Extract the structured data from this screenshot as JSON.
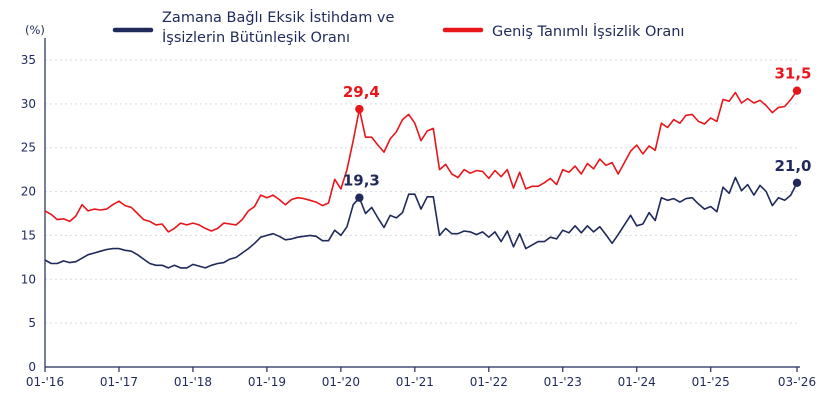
{
  "chart_data": {
    "type": "line",
    "unit_label": "(%)",
    "ylim": [
      0,
      35
    ],
    "y_ticks": [
      "0",
      "5",
      "10",
      "15",
      "20",
      "25",
      "30",
      "35"
    ],
    "y_tick_values": [
      0,
      5,
      10,
      15,
      20,
      25,
      30,
      35
    ],
    "x_range": [
      "2016-01",
      "2026-03"
    ],
    "x_tick_labels": [
      "01-'16",
      "01-'17",
      "01-'18",
      "01-'19",
      "01-'20",
      "01-'21",
      "01-'22",
      "01-'23",
      "01-'24",
      "01-'25",
      "03-'26"
    ],
    "x_tick_values": [
      "2016-01",
      "2017-01",
      "2018-01",
      "2019-01",
      "2020-01",
      "2021-01",
      "2022-01",
      "2023-01",
      "2024-01",
      "2025-01",
      "2026-03"
    ],
    "grid": "horizontal",
    "legend_position": "top",
    "series": [
      {
        "name": "Zamana Bağlı Eksik İstihdam ve İşsizlerin Bütünleşik Oranı",
        "legend_lines": [
          "Zamana Bağlı Eksik İstihdam ve",
          "İşsizlerin Bütünleşik Oranı"
        ],
        "color": "#1f2a5a",
        "points": [
          [
            "2016-01",
            12.2
          ],
          [
            "2016-02",
            11.8
          ],
          [
            "2016-03",
            11.8
          ],
          [
            "2016-04",
            12.1
          ],
          [
            "2016-05",
            11.9
          ],
          [
            "2016-06",
            12.0
          ],
          [
            "2016-07",
            12.4
          ],
          [
            "2016-08",
            12.8
          ],
          [
            "2016-09",
            13.0
          ],
          [
            "2016-10",
            13.2
          ],
          [
            "2016-11",
            13.4
          ],
          [
            "2016-12",
            13.5
          ],
          [
            "2017-01",
            13.5
          ],
          [
            "2017-02",
            13.3
          ],
          [
            "2017-03",
            13.2
          ],
          [
            "2017-04",
            12.8
          ],
          [
            "2017-05",
            12.3
          ],
          [
            "2017-06",
            11.8
          ],
          [
            "2017-07",
            11.6
          ],
          [
            "2017-08",
            11.6
          ],
          [
            "2017-09",
            11.3
          ],
          [
            "2017-10",
            11.6
          ],
          [
            "2017-11",
            11.3
          ],
          [
            "2017-12",
            11.3
          ],
          [
            "2018-01",
            11.7
          ],
          [
            "2018-02",
            11.5
          ],
          [
            "2018-03",
            11.3
          ],
          [
            "2018-04",
            11.6
          ],
          [
            "2018-05",
            11.8
          ],
          [
            "2018-06",
            11.9
          ],
          [
            "2018-07",
            12.3
          ],
          [
            "2018-08",
            12.5
          ],
          [
            "2018-09",
            13.0
          ],
          [
            "2018-10",
            13.5
          ],
          [
            "2018-11",
            14.1
          ],
          [
            "2018-12",
            14.8
          ],
          [
            "2019-01",
            15.0
          ],
          [
            "2019-02",
            15.2
          ],
          [
            "2019-03",
            14.9
          ],
          [
            "2019-04",
            14.5
          ],
          [
            "2019-05",
            14.6
          ],
          [
            "2019-06",
            14.8
          ],
          [
            "2019-07",
            14.9
          ],
          [
            "2019-08",
            15.0
          ],
          [
            "2019-09",
            14.9
          ],
          [
            "2019-10",
            14.4
          ],
          [
            "2019-11",
            14.4
          ],
          [
            "2019-12",
            15.6
          ],
          [
            "2020-01",
            15.0
          ],
          [
            "2020-02",
            16.0
          ],
          [
            "2020-03",
            18.5
          ],
          [
            "2020-04",
            19.3
          ],
          [
            "2020-05",
            17.5
          ],
          [
            "2020-06",
            18.2
          ],
          [
            "2020-07",
            17.0
          ],
          [
            "2020-08",
            15.9
          ],
          [
            "2020-09",
            17.3
          ],
          [
            "2020-10",
            17.0
          ],
          [
            "2020-11",
            17.6
          ],
          [
            "2020-12",
            19.7
          ],
          [
            "2021-01",
            19.7
          ],
          [
            "2021-02",
            18.0
          ],
          [
            "2021-03",
            19.4
          ],
          [
            "2021-04",
            19.4
          ],
          [
            "2021-05",
            15.0
          ],
          [
            "2021-06",
            15.8
          ],
          [
            "2021-07",
            15.2
          ],
          [
            "2021-08",
            15.2
          ],
          [
            "2021-09",
            15.5
          ],
          [
            "2021-10",
            15.4
          ],
          [
            "2021-11",
            15.1
          ],
          [
            "2021-12",
            15.4
          ],
          [
            "2022-01",
            14.8
          ],
          [
            "2022-02",
            15.4
          ],
          [
            "2022-03",
            14.3
          ],
          [
            "2022-04",
            15.5
          ],
          [
            "2022-05",
            13.7
          ],
          [
            "2022-06",
            15.2
          ],
          [
            "2022-07",
            13.5
          ],
          [
            "2022-08",
            13.9
          ],
          [
            "2022-09",
            14.3
          ],
          [
            "2022-10",
            14.3
          ],
          [
            "2022-11",
            14.8
          ],
          [
            "2022-12",
            14.6
          ],
          [
            "2023-01",
            15.6
          ],
          [
            "2023-02",
            15.3
          ],
          [
            "2023-03",
            16.1
          ],
          [
            "2023-04",
            15.3
          ],
          [
            "2023-05",
            16.1
          ],
          [
            "2023-06",
            15.4
          ],
          [
            "2023-07",
            16.0
          ],
          [
            "2023-08",
            15.1
          ],
          [
            "2023-09",
            14.1
          ],
          [
            "2023-10",
            15.1
          ],
          [
            "2023-11",
            16.2
          ],
          [
            "2023-12",
            17.3
          ],
          [
            "2024-01",
            16.1
          ],
          [
            "2024-02",
            16.3
          ],
          [
            "2024-03",
            17.6
          ],
          [
            "2024-04",
            16.7
          ],
          [
            "2024-05",
            19.3
          ],
          [
            "2024-06",
            19.0
          ],
          [
            "2024-07",
            19.2
          ],
          [
            "2024-08",
            18.8
          ],
          [
            "2024-09",
            19.2
          ],
          [
            "2024-10",
            19.3
          ],
          [
            "2024-11",
            18.6
          ],
          [
            "2024-12",
            18.0
          ],
          [
            "2025-01",
            18.3
          ],
          [
            "2025-02",
            17.7
          ],
          [
            "2025-03",
            20.5
          ],
          [
            "2025-04",
            19.8
          ],
          [
            "2025-05",
            21.6
          ],
          [
            "2025-06",
            20.1
          ],
          [
            "2025-07",
            20.8
          ],
          [
            "2025-08",
            19.6
          ],
          [
            "2025-09",
            20.7
          ],
          [
            "2025-10",
            20.0
          ],
          [
            "2025-11",
            18.4
          ],
          [
            "2025-12",
            19.3
          ],
          [
            "2026-01",
            19.0
          ],
          [
            "2026-02",
            19.6
          ],
          [
            "2026-03",
            21.0
          ]
        ]
      },
      {
        "name": "Geniş Tanımlı İşsizlik Oranı",
        "legend_lines": [
          "Geniş Tanımlı İşsizlik Oranı"
        ],
        "color": "#e8161b",
        "points": [
          [
            "2016-01",
            17.8
          ],
          [
            "2016-02",
            17.4
          ],
          [
            "2016-03",
            16.8
          ],
          [
            "2016-04",
            16.9
          ],
          [
            "2016-05",
            16.6
          ],
          [
            "2016-06",
            17.2
          ],
          [
            "2016-07",
            18.5
          ],
          [
            "2016-08",
            17.8
          ],
          [
            "2016-09",
            18.0
          ],
          [
            "2016-10",
            17.9
          ],
          [
            "2016-11",
            18.0
          ],
          [
            "2016-12",
            18.5
          ],
          [
            "2017-01",
            18.9
          ],
          [
            "2017-02",
            18.4
          ],
          [
            "2017-03",
            18.2
          ],
          [
            "2017-04",
            17.5
          ],
          [
            "2017-05",
            16.8
          ],
          [
            "2017-06",
            16.6
          ],
          [
            "2017-07",
            16.2
          ],
          [
            "2017-08",
            16.3
          ],
          [
            "2017-09",
            15.4
          ],
          [
            "2017-10",
            15.8
          ],
          [
            "2017-11",
            16.4
          ],
          [
            "2017-12",
            16.2
          ],
          [
            "2018-01",
            16.4
          ],
          [
            "2018-02",
            16.2
          ],
          [
            "2018-03",
            15.8
          ],
          [
            "2018-04",
            15.5
          ],
          [
            "2018-05",
            15.8
          ],
          [
            "2018-06",
            16.4
          ],
          [
            "2018-07",
            16.3
          ],
          [
            "2018-08",
            16.2
          ],
          [
            "2018-09",
            16.8
          ],
          [
            "2018-10",
            17.8
          ],
          [
            "2018-11",
            18.3
          ],
          [
            "2018-12",
            19.6
          ],
          [
            "2019-01",
            19.3
          ],
          [
            "2019-02",
            19.6
          ],
          [
            "2019-03",
            19.1
          ],
          [
            "2019-04",
            18.5
          ],
          [
            "2019-05",
            19.1
          ],
          [
            "2019-06",
            19.3
          ],
          [
            "2019-07",
            19.2
          ],
          [
            "2019-08",
            19.0
          ],
          [
            "2019-09",
            18.8
          ],
          [
            "2019-10",
            18.4
          ],
          [
            "2019-11",
            18.7
          ],
          [
            "2019-12",
            21.4
          ],
          [
            "2020-01",
            20.3
          ],
          [
            "2020-02",
            22.5
          ],
          [
            "2020-03",
            25.8
          ],
          [
            "2020-04",
            29.4
          ],
          [
            "2020-05",
            26.2
          ],
          [
            "2020-06",
            26.2
          ],
          [
            "2020-07",
            25.3
          ],
          [
            "2020-08",
            24.5
          ],
          [
            "2020-09",
            26.0
          ],
          [
            "2020-10",
            26.8
          ],
          [
            "2020-11",
            28.2
          ],
          [
            "2020-12",
            28.8
          ],
          [
            "2021-01",
            27.8
          ],
          [
            "2021-02",
            25.8
          ],
          [
            "2021-03",
            26.9
          ],
          [
            "2021-04",
            27.2
          ],
          [
            "2021-05",
            22.5
          ],
          [
            "2021-06",
            23.1
          ],
          [
            "2021-07",
            22.0
          ],
          [
            "2021-08",
            21.6
          ],
          [
            "2021-09",
            22.5
          ],
          [
            "2021-10",
            22.1
          ],
          [
            "2021-11",
            22.4
          ],
          [
            "2021-12",
            22.3
          ],
          [
            "2022-01",
            21.5
          ],
          [
            "2022-02",
            22.4
          ],
          [
            "2022-03",
            21.7
          ],
          [
            "2022-04",
            22.5
          ],
          [
            "2022-05",
            20.4
          ],
          [
            "2022-06",
            22.2
          ],
          [
            "2022-07",
            20.3
          ],
          [
            "2022-08",
            20.6
          ],
          [
            "2022-09",
            20.6
          ],
          [
            "2022-10",
            21.0
          ],
          [
            "2022-11",
            21.5
          ],
          [
            "2022-12",
            20.8
          ],
          [
            "2023-01",
            22.5
          ],
          [
            "2023-02",
            22.2
          ],
          [
            "2023-03",
            22.9
          ],
          [
            "2023-04",
            22.0
          ],
          [
            "2023-05",
            23.2
          ],
          [
            "2023-06",
            22.6
          ],
          [
            "2023-07",
            23.7
          ],
          [
            "2023-08",
            23.0
          ],
          [
            "2023-09",
            23.3
          ],
          [
            "2023-10",
            22.0
          ],
          [
            "2023-11",
            23.3
          ],
          [
            "2023-12",
            24.6
          ],
          [
            "2024-01",
            25.3
          ],
          [
            "2024-02",
            24.3
          ],
          [
            "2024-03",
            25.2
          ],
          [
            "2024-04",
            24.7
          ],
          [
            "2024-05",
            27.8
          ],
          [
            "2024-06",
            27.3
          ],
          [
            "2024-07",
            28.2
          ],
          [
            "2024-08",
            27.8
          ],
          [
            "2024-09",
            28.7
          ],
          [
            "2024-10",
            28.8
          ],
          [
            "2024-11",
            28.0
          ],
          [
            "2024-12",
            27.7
          ],
          [
            "2025-01",
            28.4
          ],
          [
            "2025-02",
            28.0
          ],
          [
            "2025-03",
            30.5
          ],
          [
            "2025-04",
            30.3
          ],
          [
            "2025-05",
            31.3
          ],
          [
            "2025-06",
            30.1
          ],
          [
            "2025-07",
            30.6
          ],
          [
            "2025-08",
            30.1
          ],
          [
            "2025-09",
            30.4
          ],
          [
            "2025-10",
            29.8
          ],
          [
            "2025-11",
            29.0
          ],
          [
            "2025-12",
            29.6
          ],
          [
            "2026-01",
            29.7
          ],
          [
            "2026-02",
            30.5
          ],
          [
            "2026-03",
            31.5
          ]
        ]
      }
    ],
    "annotations": [
      {
        "series": 1,
        "x": "2020-04",
        "y": 29.4,
        "label": "29,4"
      },
      {
        "series": 0,
        "x": "2020-04",
        "y": 19.3,
        "label": "19,3"
      },
      {
        "series": 1,
        "x": "2026-03",
        "y": 31.5,
        "label": "31,5"
      },
      {
        "series": 0,
        "x": "2026-03",
        "y": 21.0,
        "label": "21,0"
      }
    ]
  }
}
